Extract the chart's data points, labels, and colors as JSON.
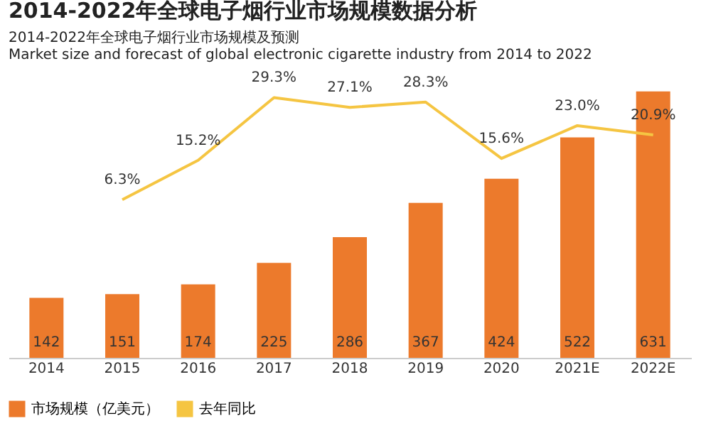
{
  "chart_data": {
    "type": "bar",
    "title": "2014-2022年全球电子烟行业市场规模数据分析",
    "subtitle": "2014-2022年全球电子烟行业市场规模及预测",
    "annotations": [
      "Market size and forecast of global electronic cigarette industry from 2014 to 2022"
    ],
    "categories": [
      "2014",
      "2015",
      "2016",
      "2017",
      "2018",
      "2019",
      "2020",
      "2021E",
      "2022E"
    ],
    "series": [
      {
        "name": "市场规模（亿美元）",
        "color": "#ec7a2c",
        "values": [
          142,
          151,
          174,
          225,
          286,
          367,
          424,
          522,
          631
        ]
      },
      {
        "name": "去年同比",
        "type": "line",
        "axis": "y2",
        "color": "#f5c542",
        "values": [
          null,
          6.3,
          15.2,
          29.3,
          27.1,
          28.3,
          15.6,
          23.0,
          20.9
        ],
        "value_labels": [
          null,
          "6.3%",
          "15.2%",
          "29.3%",
          "27.1%",
          "28.3%",
          "15.6%",
          "23.0%",
          "20.9%"
        ]
      }
    ],
    "data_labels": true,
    "legend": "bottom",
    "marker": "none",
    "line_style": "solid"
  }
}
